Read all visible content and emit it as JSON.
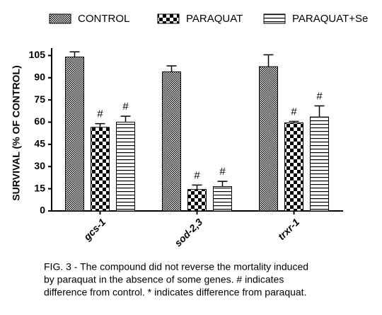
{
  "chart_data": {
    "type": "bar",
    "ylabel": "SURVIVAL (% OF CONTROL)",
    "categories": [
      "gcs-1",
      "sod-2,3",
      "trxr-1"
    ],
    "ylim": [
      0,
      110
    ],
    "yticks": [
      0,
      15,
      30,
      45,
      60,
      75,
      90,
      105
    ],
    "series": [
      {
        "name": "CONTROL",
        "color": "#000000",
        "pattern": "crosshatch",
        "values": [
          104,
          94,
          97.5
        ],
        "errors": [
          3.5,
          4,
          8
        ],
        "annotations": [
          null,
          null,
          null
        ]
      },
      {
        "name": "PARAQUAT",
        "color": "#000000",
        "pattern": "checker",
        "values": [
          56.5,
          14.5,
          59.5
        ],
        "errors": [
          2.5,
          3,
          1
        ],
        "annotations": [
          "#",
          "#",
          "#"
        ]
      },
      {
        "name": "PARAQUAT+Se",
        "color": "#000000",
        "pattern": "hlines",
        "values": [
          60,
          16.5,
          63.5
        ],
        "errors": [
          4,
          3.5,
          7.5
        ],
        "annotations": [
          "#",
          "#",
          "#"
        ]
      }
    ],
    "caption": [
      "FIG. 3 - The compound did not reverse the mortality induced",
      "by paraquat in the absence of some genes. # indicates",
      "difference from control. * indicates difference from paraquat."
    ]
  }
}
